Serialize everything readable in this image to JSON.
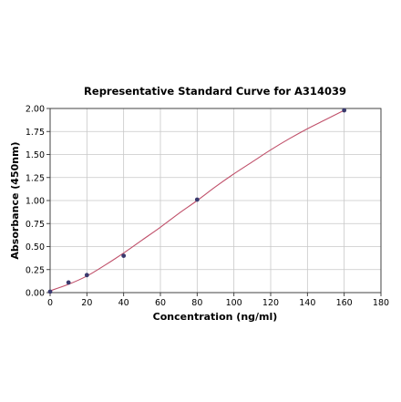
{
  "chart_data": {
    "type": "scatter",
    "title": "Representative Standard Curve for A314039",
    "xlabel": "Concentration (ng/ml)",
    "ylabel": "Absorbance (450nm)",
    "xlim": [
      0,
      180
    ],
    "ylim": [
      0,
      2.0
    ],
    "x_ticks": [
      "0",
      "20",
      "40",
      "60",
      "80",
      "100",
      "120",
      "140",
      "160",
      "180"
    ],
    "y_ticks": [
      "0.00",
      "0.25",
      "0.50",
      "0.75",
      "1.00",
      "1.25",
      "1.50",
      "1.75",
      "2.00"
    ],
    "grid": true,
    "series": [
      {
        "points": [
          {
            "x": 0,
            "y": 0.01
          },
          {
            "x": 10,
            "y": 0.11
          },
          {
            "x": 20,
            "y": 0.19
          },
          {
            "x": 40,
            "y": 0.4
          },
          {
            "x": 80,
            "y": 1.01
          },
          {
            "x": 160,
            "y": 1.98
          }
        ],
        "marker_color": "#3a3a6e"
      }
    ],
    "fit_curve": {
      "x": [
        0,
        10,
        20,
        30,
        40,
        50,
        60,
        70,
        80,
        90,
        100,
        110,
        120,
        130,
        140,
        150,
        160
      ],
      "y": [
        0.02,
        0.09,
        0.18,
        0.3,
        0.43,
        0.57,
        0.71,
        0.86,
        1.0,
        1.15,
        1.29,
        1.42,
        1.55,
        1.67,
        1.78,
        1.88,
        1.98
      ],
      "color": "#c0506a"
    }
  }
}
